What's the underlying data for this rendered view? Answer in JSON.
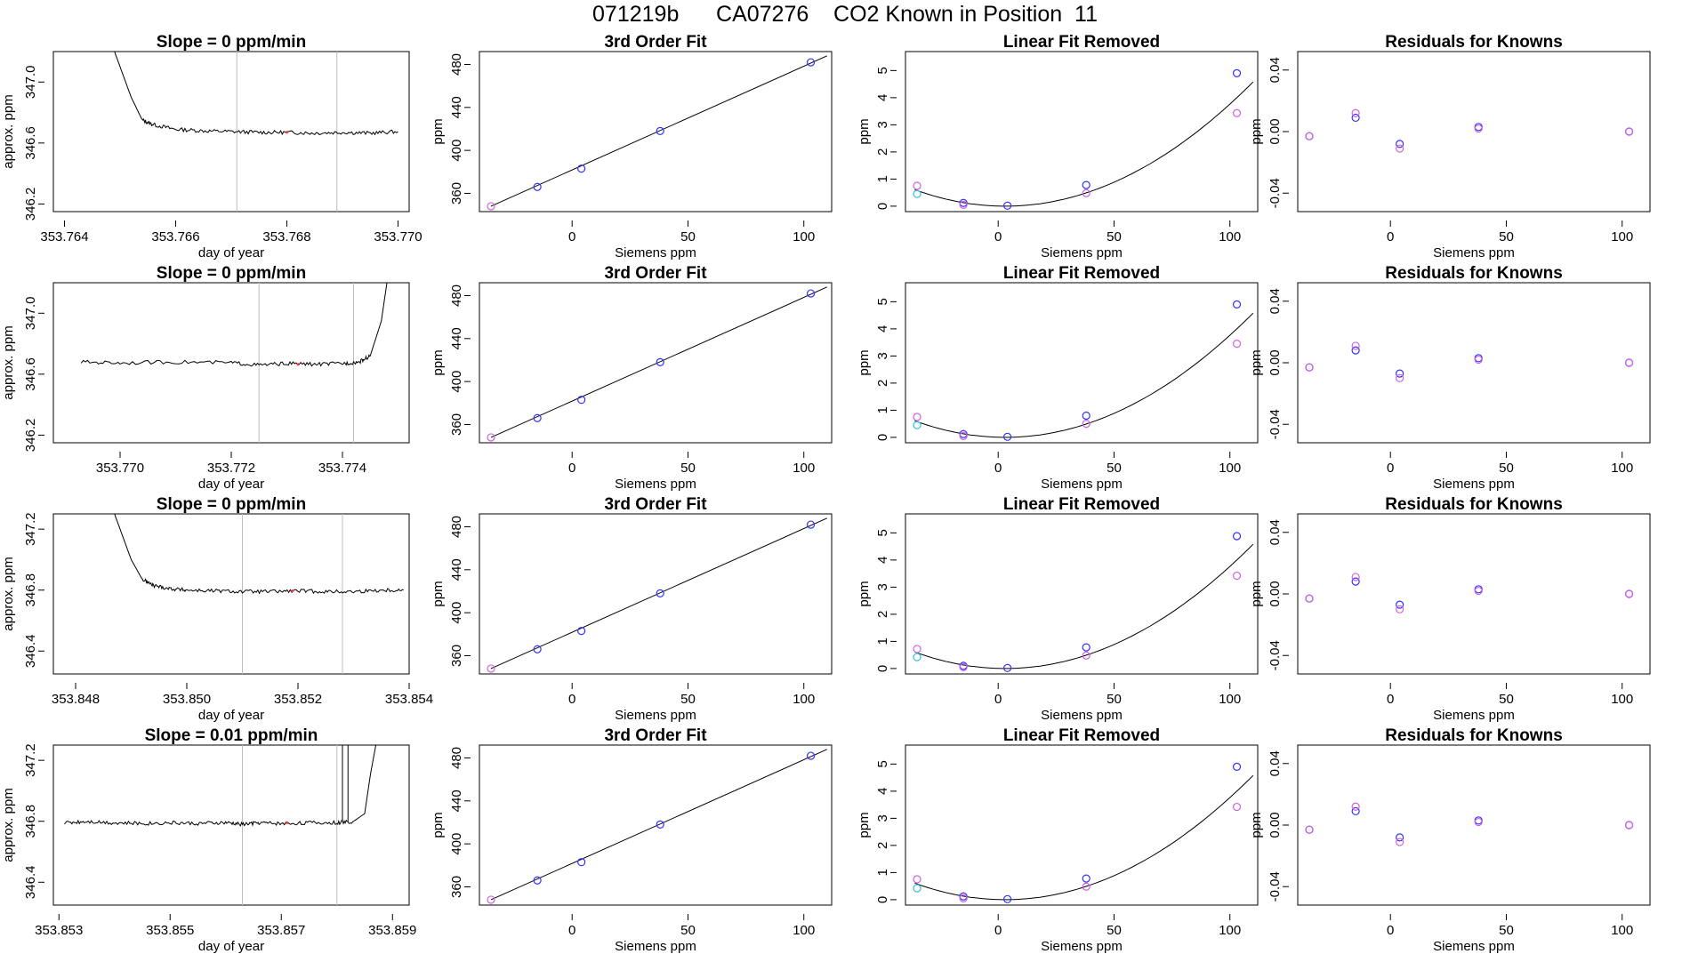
{
  "figure": {
    "title": "071219b      CA07276    CO2 Known in Position  11"
  },
  "colors": {
    "line": "#000000",
    "vline": "#bdbdbd",
    "blue": "#3030ff",
    "magenta": "#d060e0",
    "cyan": "#30c0e0",
    "purple": "#8040e0",
    "red": "#ff3030"
  },
  "chart_data": [
    {
      "type": "line",
      "panel": "timeseries",
      "title": "Slope =  0  ppm/min",
      "xlabel": "day of year",
      "ylabel": "approx. ppm",
      "xlim": [
        353.7638,
        353.7702
      ],
      "ylim": [
        346.15,
        347.2
      ],
      "xticks": [
        353.764,
        353.766,
        353.768,
        353.77
      ],
      "xtick_labels": [
        "353.764",
        "353.766",
        "353.768",
        "353.770"
      ],
      "yticks": [
        346.2,
        346.6,
        347.0
      ],
      "ytick_labels": [
        "346.2",
        "346.6",
        "347.0"
      ],
      "vlines": [
        353.7671,
        353.7689
      ],
      "x": [
        353.7649,
        353.7652,
        353.7654,
        353.7656,
        353.766,
        353.7665,
        353.767,
        353.7675,
        353.768,
        353.7685,
        353.769,
        353.7695,
        353.77
      ],
      "y": [
        347.2,
        346.9,
        346.75,
        346.72,
        346.69,
        346.68,
        346.675,
        346.67,
        346.67,
        346.665,
        346.67,
        346.665,
        346.675
      ],
      "marker": {
        "x": 353.768,
        "y": 346.67
      }
    },
    {
      "type": "scatter",
      "panel": "fit",
      "title": "3rd Order Fit",
      "xlabel": "Siemens ppm",
      "ylabel": "ppm",
      "xlim": [
        -40,
        112
      ],
      "ylim": [
        343,
        492
      ],
      "xticks": [
        0,
        50,
        100
      ],
      "yticks": [
        360,
        400,
        440,
        480
      ],
      "x": [
        -35,
        -15,
        4,
        38,
        103
      ],
      "y": [
        348,
        366,
        383,
        418,
        482
      ],
      "fit_line": {
        "x": [
          -35,
          110
        ],
        "y": [
          348,
          488
        ]
      }
    },
    {
      "type": "scatter",
      "panel": "linear_removed",
      "title": "Linear Fit Removed",
      "xlabel": "Siemens ppm",
      "ylabel": "ppm",
      "xlim": [
        -40,
        112
      ],
      "ylim": [
        -0.2,
        5.7
      ],
      "xticks": [
        0,
        50,
        100
      ],
      "yticks": [
        0,
        1,
        2,
        3,
        4,
        5
      ],
      "series": [
        {
          "color_key": "blue",
          "x": [
            -15,
            4,
            38,
            103
          ],
          "y": [
            0.12,
            0.02,
            0.78,
            4.9
          ]
        },
        {
          "color_key": "magenta",
          "x": [
            -35,
            -15,
            38,
            103
          ],
          "y": [
            0.75,
            0.05,
            0.48,
            3.43
          ]
        },
        {
          "color_key": "cyan",
          "x": [
            -35
          ],
          "y": [
            0.45
          ]
        }
      ],
      "fit_curve": {
        "vertex": 3,
        "coef": 0.0004,
        "xmax": 110
      }
    },
    {
      "type": "scatter",
      "panel": "residuals",
      "title": "Residuals for Knowns",
      "xlabel": "Siemens ppm",
      "ylabel": "ppm",
      "xlim": [
        -40,
        112
      ],
      "ylim": [
        -0.052,
        0.052
      ],
      "xticks": [
        0,
        50,
        100
      ],
      "yticks": [
        -0.04,
        0.0,
        0.04
      ],
      "ytick_labels": [
        "-0.04",
        "0.00",
        "0.04"
      ],
      "series": [
        {
          "color_key": "blue",
          "x": [
            -35,
            -15,
            4,
            38,
            103
          ],
          "y": [
            -0.003,
            0.009,
            -0.008,
            0.003,
            0.0
          ]
        },
        {
          "color_key": "magenta",
          "x": [
            -35,
            -15,
            4,
            38,
            103
          ],
          "y": [
            -0.003,
            0.012,
            -0.011,
            0.002,
            0.0
          ]
        }
      ]
    },
    {
      "type": "line",
      "panel": "timeseries",
      "title": "Slope =  0  ppm/min",
      "xlabel": "day of year",
      "ylabel": "approx. ppm",
      "xlim": [
        353.7688,
        353.7752
      ],
      "ylim": [
        346.15,
        347.2
      ],
      "xticks": [
        353.77,
        353.772,
        353.774
      ],
      "xtick_labels": [
        "353.770",
        "353.772",
        "353.774"
      ],
      "yticks": [
        346.2,
        346.6,
        347.0
      ],
      "ytick_labels": [
        "346.2",
        "346.6",
        "347.0"
      ],
      "vlines": [
        353.7725,
        353.7742
      ],
      "x": [
        353.7693,
        353.77,
        353.771,
        353.772,
        353.7725,
        353.773,
        353.7735,
        353.774,
        353.7743,
        353.7745,
        353.7747,
        353.7748
      ],
      "y": [
        346.68,
        346.675,
        346.68,
        346.675,
        346.66,
        346.67,
        346.665,
        346.67,
        346.68,
        346.72,
        346.95,
        347.2
      ],
      "marker": {
        "x": 353.7732,
        "y": 346.665
      }
    },
    {
      "type": "scatter",
      "panel": "fit",
      "title": "3rd Order Fit",
      "xlabel": "Siemens ppm",
      "ylabel": "ppm",
      "xlim": [
        -40,
        112
      ],
      "ylim": [
        343,
        492
      ],
      "xticks": [
        0,
        50,
        100
      ],
      "yticks": [
        360,
        400,
        440,
        480
      ],
      "x": [
        -35,
        -15,
        4,
        38,
        103
      ],
      "y": [
        348,
        366,
        383,
        418,
        482
      ],
      "fit_line": {
        "x": [
          -35,
          110
        ],
        "y": [
          348,
          488
        ]
      }
    },
    {
      "type": "scatter",
      "panel": "linear_removed",
      "title": "Linear Fit Removed",
      "xlabel": "Siemens ppm",
      "ylabel": "ppm",
      "xlim": [
        -40,
        112
      ],
      "ylim": [
        -0.2,
        5.7
      ],
      "xticks": [
        0,
        50,
        100
      ],
      "yticks": [
        0,
        1,
        2,
        3,
        4,
        5
      ],
      "series": [
        {
          "color_key": "blue",
          "x": [
            -15,
            4,
            38,
            103
          ],
          "y": [
            0.12,
            0.02,
            0.8,
            4.9
          ]
        },
        {
          "color_key": "magenta",
          "x": [
            -35,
            -15,
            38,
            103
          ],
          "y": [
            0.75,
            0.05,
            0.5,
            3.45
          ]
        },
        {
          "color_key": "cyan",
          "x": [
            -35
          ],
          "y": [
            0.45
          ]
        }
      ],
      "fit_curve": {
        "vertex": 3,
        "coef": 0.0004,
        "xmax": 110
      }
    },
    {
      "type": "scatter",
      "panel": "residuals",
      "title": "Residuals for Knowns",
      "xlabel": "Siemens ppm",
      "ylabel": "ppm",
      "xlim": [
        -40,
        112
      ],
      "ylim": [
        -0.052,
        0.052
      ],
      "xticks": [
        0,
        50,
        100
      ],
      "yticks": [
        -0.04,
        0.0,
        0.04
      ],
      "ytick_labels": [
        "-0.04",
        "0.00",
        "0.04"
      ],
      "series": [
        {
          "color_key": "blue",
          "x": [
            -35,
            -15,
            4,
            38,
            103
          ],
          "y": [
            -0.003,
            0.008,
            -0.007,
            0.003,
            0.0
          ]
        },
        {
          "color_key": "magenta",
          "x": [
            -35,
            -15,
            4,
            38,
            103
          ],
          "y": [
            -0.003,
            0.011,
            -0.01,
            0.002,
            0.0
          ]
        }
      ]
    },
    {
      "type": "line",
      "panel": "timeseries",
      "title": "Slope =  0  ppm/min",
      "xlabel": "day of year",
      "ylabel": "approx. ppm",
      "xlim": [
        353.8476,
        353.854
      ],
      "ylim": [
        346.25,
        347.3
      ],
      "xticks": [
        353.848,
        353.85,
        353.852,
        353.854
      ],
      "xtick_labels": [
        "353.848",
        "353.850",
        "353.852",
        "353.854"
      ],
      "yticks": [
        346.4,
        346.8,
        347.2
      ],
      "ytick_labels": [
        "346.4",
        "346.8",
        "347.2"
      ],
      "vlines": [
        353.851,
        353.8528
      ],
      "x": [
        353.8487,
        353.849,
        353.8492,
        353.8494,
        353.8497,
        353.85,
        353.8505,
        353.851,
        353.8515,
        353.852,
        353.8525,
        353.853,
        353.8535,
        353.8539
      ],
      "y": [
        347.3,
        347.0,
        346.87,
        346.83,
        346.81,
        346.8,
        346.795,
        346.79,
        346.79,
        346.795,
        346.79,
        346.79,
        346.8,
        346.8
      ],
      "marker": {
        "x": 353.8519,
        "y": 346.795
      }
    },
    {
      "type": "scatter",
      "panel": "fit",
      "title": "3rd Order Fit",
      "xlabel": "Siemens ppm",
      "ylabel": "ppm",
      "xlim": [
        -40,
        112
      ],
      "ylim": [
        343,
        492
      ],
      "xticks": [
        0,
        50,
        100
      ],
      "yticks": [
        360,
        400,
        440,
        480
      ],
      "x": [
        -35,
        -15,
        4,
        38,
        103
      ],
      "y": [
        348,
        366,
        383,
        418,
        482
      ],
      "fit_line": {
        "x": [
          -35,
          110
        ],
        "y": [
          348,
          488
        ]
      }
    },
    {
      "type": "scatter",
      "panel": "linear_removed",
      "title": "Linear Fit Removed",
      "xlabel": "Siemens ppm",
      "ylabel": "ppm",
      "xlim": [
        -40,
        112
      ],
      "ylim": [
        -0.2,
        5.7
      ],
      "xticks": [
        0,
        50,
        100
      ],
      "yticks": [
        0,
        1,
        2,
        3,
        4,
        5
      ],
      "series": [
        {
          "color_key": "blue",
          "x": [
            -15,
            4,
            38,
            103
          ],
          "y": [
            0.1,
            0.02,
            0.78,
            4.88
          ]
        },
        {
          "color_key": "magenta",
          "x": [
            -35,
            -15,
            38,
            103
          ],
          "y": [
            0.72,
            0.05,
            0.48,
            3.42
          ]
        },
        {
          "color_key": "cyan",
          "x": [
            -35
          ],
          "y": [
            0.42
          ]
        }
      ],
      "fit_curve": {
        "vertex": 3,
        "coef": 0.0004,
        "xmax": 110
      }
    },
    {
      "type": "scatter",
      "panel": "residuals",
      "title": "Residuals for Knowns",
      "xlabel": "Siemens ppm",
      "ylabel": "ppm",
      "xlim": [
        -40,
        112
      ],
      "ylim": [
        -0.052,
        0.052
      ],
      "xticks": [
        0,
        50,
        100
      ],
      "yticks": [
        -0.04,
        0.0,
        0.04
      ],
      "ytick_labels": [
        "-0.04",
        "0.00",
        "0.04"
      ],
      "series": [
        {
          "color_key": "blue",
          "x": [
            -35,
            -15,
            4,
            38,
            103
          ],
          "y": [
            -0.003,
            0.008,
            -0.007,
            0.003,
            0.0
          ]
        },
        {
          "color_key": "magenta",
          "x": [
            -35,
            -15,
            4,
            38,
            103
          ],
          "y": [
            -0.003,
            0.011,
            -0.01,
            0.002,
            0.0
          ]
        }
      ]
    },
    {
      "type": "line",
      "panel": "timeseries",
      "title": "Slope =  0.01  ppm/min",
      "xlabel": "day of year",
      "ylabel": "approx. ppm",
      "xlim": [
        353.8529,
        353.8593
      ],
      "ylim": [
        346.25,
        347.3
      ],
      "xticks": [
        353.853,
        353.855,
        353.857,
        353.859
      ],
      "xtick_labels": [
        "353.853",
        "353.855",
        "353.857",
        "353.859"
      ],
      "yticks": [
        346.4,
        346.8,
        347.2
      ],
      "ytick_labels": [
        "346.4",
        "346.8",
        "347.2"
      ],
      "vlines": [
        353.8563,
        353.858
      ],
      "extra_spikes": [
        353.8581,
        353.8582
      ],
      "x": [
        353.8531,
        353.8535,
        353.854,
        353.8545,
        353.855,
        353.8555,
        353.856,
        353.8563,
        353.8566,
        353.857,
        353.8575,
        353.858,
        353.8583,
        353.8585,
        353.8586,
        353.8587
      ],
      "y": [
        346.79,
        346.8,
        346.79,
        346.785,
        346.79,
        346.785,
        346.79,
        346.78,
        346.79,
        346.785,
        346.79,
        346.79,
        346.8,
        346.85,
        347.1,
        347.3
      ],
      "marker": {
        "x": 353.8571,
        "y": 346.79
      }
    },
    {
      "type": "scatter",
      "panel": "fit",
      "title": "3rd Order Fit",
      "xlabel": "Siemens ppm",
      "ylabel": "ppm",
      "xlim": [
        -40,
        112
      ],
      "ylim": [
        343,
        492
      ],
      "xticks": [
        0,
        50,
        100
      ],
      "yticks": [
        360,
        400,
        440,
        480
      ],
      "x": [
        -35,
        -15,
        4,
        38,
        103
      ],
      "y": [
        348,
        366,
        383,
        418,
        482
      ],
      "fit_line": {
        "x": [
          -35,
          110
        ],
        "y": [
          348,
          488
        ]
      }
    },
    {
      "type": "scatter",
      "panel": "linear_removed",
      "title": "Linear Fit Removed",
      "xlabel": "Siemens ppm",
      "ylabel": "ppm",
      "xlim": [
        -40,
        112
      ],
      "ylim": [
        -0.2,
        5.7
      ],
      "xticks": [
        0,
        50,
        100
      ],
      "yticks": [
        0,
        1,
        2,
        3,
        4,
        5
      ],
      "series": [
        {
          "color_key": "blue",
          "x": [
            -15,
            4,
            38,
            103
          ],
          "y": [
            0.12,
            0.02,
            0.78,
            4.9
          ]
        },
        {
          "color_key": "magenta",
          "x": [
            -35,
            -15,
            38,
            103
          ],
          "y": [
            0.75,
            0.05,
            0.48,
            3.42
          ]
        },
        {
          "color_key": "cyan",
          "x": [
            -35
          ],
          "y": [
            0.42
          ]
        }
      ],
      "fit_curve": {
        "vertex": 3,
        "coef": 0.0004,
        "xmax": 110
      }
    },
    {
      "type": "scatter",
      "panel": "residuals",
      "title": "Residuals for Knowns",
      "xlabel": "Siemens ppm",
      "ylabel": "ppm",
      "xlim": [
        -40,
        112
      ],
      "ylim": [
        -0.052,
        0.052
      ],
      "xticks": [
        0,
        50,
        100
      ],
      "yticks": [
        -0.04,
        0.0,
        0.04
      ],
      "ytick_labels": [
        "-0.04",
        "0.00",
        "0.04"
      ],
      "series": [
        {
          "color_key": "blue",
          "x": [
            -35,
            -15,
            4,
            38,
            103
          ],
          "y": [
            -0.003,
            0.009,
            -0.008,
            0.003,
            0.0
          ]
        },
        {
          "color_key": "magenta",
          "x": [
            -35,
            -15,
            4,
            38,
            103
          ],
          "y": [
            -0.003,
            0.012,
            -0.011,
            0.002,
            0.0
          ]
        }
      ]
    }
  ]
}
